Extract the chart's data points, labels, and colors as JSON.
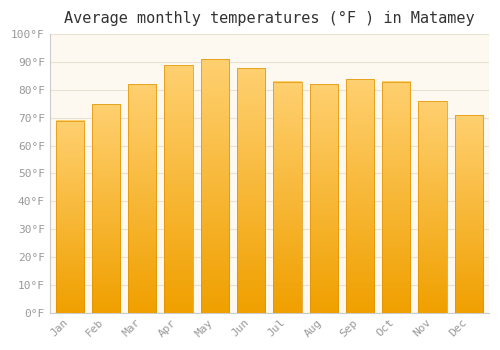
{
  "title": "Average monthly temperatures (°F ) in Matamey",
  "months": [
    "Jan",
    "Feb",
    "Mar",
    "Apr",
    "May",
    "Jun",
    "Jul",
    "Aug",
    "Sep",
    "Oct",
    "Nov",
    "Dec"
  ],
  "values": [
    69,
    75,
    82,
    89,
    91,
    88,
    83,
    82,
    84,
    83,
    76,
    71
  ],
  "bar_color_top": "#FFD070",
  "bar_color_bottom": "#F0A000",
  "bar_color_edge": "#E09000",
  "ylim": [
    0,
    100
  ],
  "yticks": [
    0,
    10,
    20,
    30,
    40,
    50,
    60,
    70,
    80,
    90,
    100
  ],
  "background_color": "#ffffff",
  "plot_bg_color": "#fdf8f0",
  "grid_color": "#e8e0d0",
  "title_fontsize": 11,
  "tick_fontsize": 8,
  "tick_color": "#999999"
}
